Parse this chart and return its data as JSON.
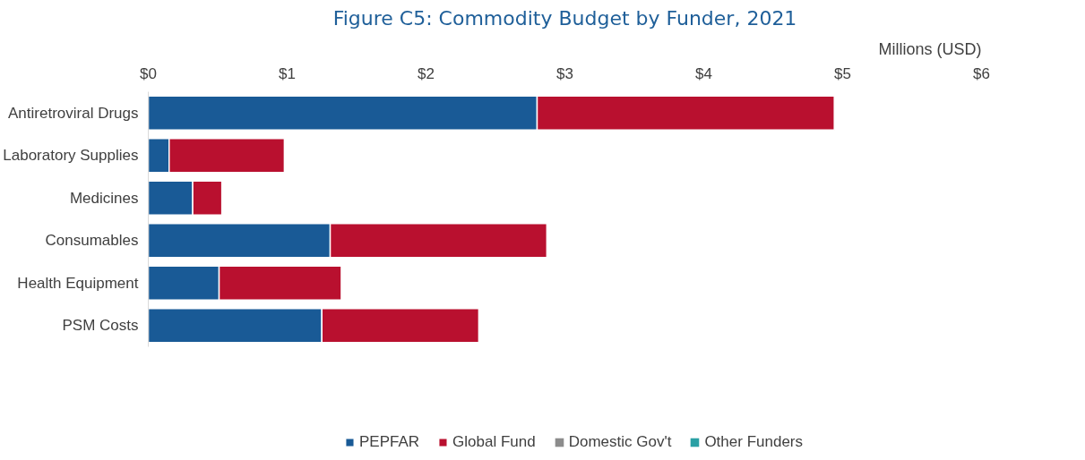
{
  "chart_data": {
    "type": "bar",
    "orientation": "horizontal",
    "stacked": true,
    "title": "Figure C5: Commodity Budget by Funder, 2021",
    "xlabel": "Millions (USD)",
    "categories": [
      "Antiretroviral Drugs",
      "Laboratory Supplies",
      "Medicines",
      "Consumables",
      "Health Equipment",
      "PSM Costs"
    ],
    "series": [
      {
        "name": "PEPFAR",
        "color": "#195a96",
        "values": [
          2.8,
          0.15,
          0.32,
          1.31,
          0.51,
          1.25
        ]
      },
      {
        "name": "Global Fund",
        "color": "#b9102f",
        "values": [
          2.14,
          0.83,
          0.21,
          1.56,
          0.88,
          1.13
        ]
      },
      {
        "name": "Domestic Gov't",
        "color": "#8c8c8c",
        "values": [
          0,
          0,
          0,
          0,
          0,
          0
        ]
      },
      {
        "name": "Other Funders",
        "color": "#2aa0a4",
        "values": [
          0,
          0,
          0,
          0,
          0,
          0
        ]
      }
    ],
    "xlim": [
      0,
      6
    ],
    "xticks": [
      {
        "value": 0,
        "label": "$0"
      },
      {
        "value": 1,
        "label": "$1"
      },
      {
        "value": 2,
        "label": "$2"
      },
      {
        "value": 3,
        "label": "$3"
      },
      {
        "value": 4,
        "label": "$4"
      },
      {
        "value": 5,
        "label": "$5"
      },
      {
        "value": 6,
        "label": "$6"
      }
    ],
    "grid": false,
    "legend": "bottom"
  }
}
